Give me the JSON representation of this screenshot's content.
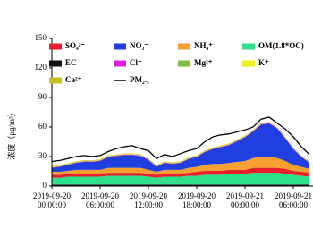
{
  "chart_data": {
    "type": "stacked-area",
    "y_label": "浓度（μg/m³）",
    "categories": [
      "2019-09-20 00:00:00",
      null,
      null,
      null,
      null,
      null,
      "2019-09-20 06:00:00",
      null,
      null,
      null,
      null,
      null,
      "2019-09-20 12:00:00",
      null,
      null,
      null,
      null,
      null,
      "2019-09-20 18:00:00",
      null,
      null,
      null,
      null,
      null,
      "2019-09-21 00:00:00",
      null,
      null,
      null,
      null,
      null,
      "2019-09-21 06:00:00",
      null,
      null
    ],
    "ylim": [
      0,
      150
    ],
    "yticks": [
      0,
      30,
      60,
      90,
      120,
      150
    ],
    "series": [
      {
        "name": "SO₄²⁻",
        "color": "#e8202a",
        "values": [
          3,
          3,
          3,
          3,
          3,
          3,
          3,
          3,
          3,
          3,
          3,
          3,
          3,
          3,
          3,
          3,
          3,
          3,
          4,
          4,
          4,
          4,
          4,
          4,
          4,
          5,
          5,
          5,
          5,
          5,
          4,
          4,
          4
        ]
      },
      {
        "name": "NO₃⁻",
        "color": "#1f3fe0",
        "values": [
          4,
          5,
          6,
          7,
          8,
          8,
          9,
          11,
          12,
          13,
          13,
          12,
          10,
          5,
          7,
          6,
          7,
          9,
          10,
          13,
          15,
          17,
          18,
          21,
          24,
          27,
          33,
          34,
          30,
          23,
          16,
          10,
          6
        ]
      },
      {
        "name": "NH₄⁺",
        "color": "#f5a030",
        "values": [
          3,
          3,
          3,
          4,
          4,
          4,
          4,
          5,
          5,
          5,
          5,
          5,
          4,
          3,
          4,
          4,
          4,
          5,
          5,
          6,
          7,
          7,
          7,
          8,
          9,
          10,
          11,
          11,
          10,
          8,
          6,
          5,
          4
        ]
      },
      {
        "name": "OM(1.8*OC)",
        "color": "#2ee08a",
        "values": [
          7,
          7,
          8,
          8,
          8,
          8,
          8,
          9,
          9,
          9,
          9,
          9,
          8,
          7,
          8,
          8,
          8,
          9,
          9,
          10,
          10,
          10,
          11,
          11,
          11,
          12,
          12,
          12,
          12,
          11,
          10,
          9,
          8
        ]
      },
      {
        "name": "EC",
        "color": "#111111",
        "values": [
          1.5,
          1.5,
          1.5,
          1.5,
          1.5,
          1.5,
          1.5,
          1.5,
          1.5,
          1.5,
          1.5,
          1.5,
          1.5,
          1.5,
          1.5,
          1.5,
          1.5,
          1.5,
          1.5,
          1.5,
          1.5,
          1.5,
          1.5,
          1.5,
          1.5,
          1.5,
          1.5,
          1.5,
          1.5,
          1.5,
          1.5,
          1.5,
          1.5
        ]
      },
      {
        "name": "Cl⁻",
        "color": "#e020e0",
        "values": [
          0.5,
          0.5,
          0.5,
          0.5,
          0.5,
          0.5,
          0.5,
          0.5,
          0.5,
          0.5,
          0.5,
          0.5,
          0.5,
          0.5,
          0.5,
          0.5,
          0.5,
          0.5,
          0.5,
          0.5,
          0.5,
          0.5,
          0.5,
          0.5,
          0.5,
          0.5,
          0.5,
          0.5,
          0.5,
          0.5,
          0.5,
          0.5,
          0.5
        ]
      },
      {
        "name": "Mg²⁺",
        "color": "#80c040",
        "values": [
          0.2,
          0.2,
          0.2,
          0.2,
          0.2,
          0.2,
          0.2,
          0.2,
          0.2,
          0.2,
          0.2,
          0.2,
          0.2,
          0.2,
          0.2,
          0.2,
          0.2,
          0.2,
          0.2,
          0.2,
          0.2,
          0.2,
          0.2,
          0.2,
          0.2,
          0.2,
          0.2,
          0.2,
          0.2,
          0.2,
          0.2,
          0.2,
          0.2
        ]
      },
      {
        "name": "K⁺",
        "color": "#f0f020",
        "values": [
          0.5,
          0.5,
          0.5,
          0.5,
          0.5,
          0.5,
          0.5,
          0.5,
          0.5,
          0.5,
          0.5,
          0.5,
          0.5,
          0.5,
          0.5,
          0.5,
          0.5,
          0.5,
          0.5,
          0.5,
          0.5,
          0.5,
          0.5,
          0.5,
          0.5,
          0.5,
          0.5,
          0.5,
          0.5,
          0.5,
          0.5,
          0.5,
          0.5
        ]
      },
      {
        "name": "Ca²⁺",
        "color": "#c8c020",
        "values": [
          0.5,
          0.5,
          0.5,
          0.5,
          0.5,
          0.5,
          0.5,
          0.5,
          0.5,
          0.5,
          0.5,
          0.5,
          0.5,
          0.5,
          0.5,
          0.5,
          0.5,
          0.5,
          0.5,
          0.5,
          0.5,
          0.5,
          0.5,
          0.5,
          0.5,
          0.5,
          0.5,
          0.5,
          0.5,
          0.5,
          0.5,
          0.5,
          0.5
        ]
      },
      {
        "name": "PM₂.₅",
        "color": "#000000",
        "kind": "line",
        "values": [
          25,
          26,
          28,
          30,
          31,
          30,
          31,
          35,
          38,
          40,
          41,
          38,
          36,
          28,
          32,
          30,
          33,
          36,
          38,
          45,
          50,
          52,
          53,
          55,
          57,
          60,
          68,
          70,
          64,
          58,
          50,
          40,
          32
        ]
      }
    ]
  }
}
